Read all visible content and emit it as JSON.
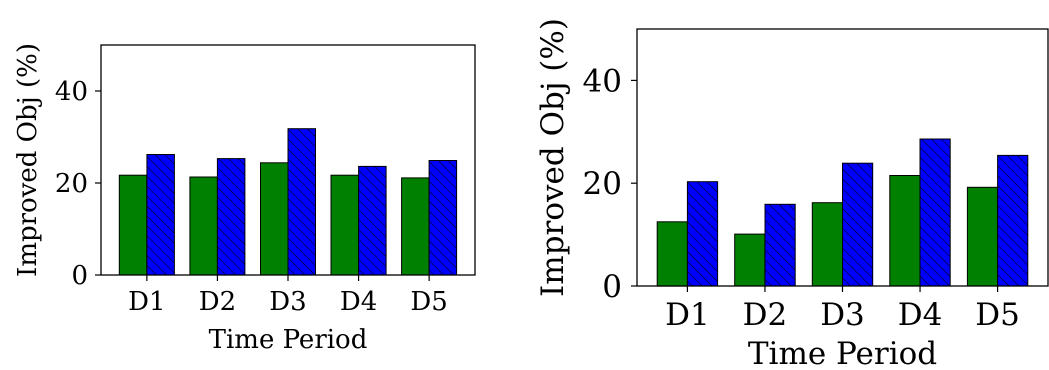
{
  "chart_data": [
    {
      "type": "bar",
      "categories": [
        "D1",
        "D2",
        "D3",
        "D4",
        "D5"
      ],
      "series": [
        {
          "values": [
            21.7,
            21.3,
            24.4,
            21.7,
            21.1
          ]
        },
        {
          "values": [
            26.2,
            25.3,
            31.8,
            23.6,
            24.9
          ]
        }
      ],
      "title": "",
      "xlabel": "Time Period",
      "ylabel": "Improved Obj (%)",
      "ylim": [
        0,
        50
      ],
      "yticks": [
        0,
        20,
        40
      ],
      "grid": false
    },
    {
      "type": "bar",
      "categories": [
        "D1",
        "D2",
        "D3",
        "D4",
        "D5"
      ],
      "series": [
        {
          "values": [
            12.5,
            10.1,
            16.2,
            21.5,
            19.2
          ]
        },
        {
          "values": [
            20.3,
            15.9,
            23.9,
            28.6,
            25.4
          ]
        }
      ],
      "title": "",
      "xlabel": "Time Period",
      "ylabel": "Improved Obj (%)",
      "ylim": [
        0,
        50
      ],
      "yticks": [
        0,
        20,
        40
      ],
      "grid": false
    }
  ],
  "colors": {
    "series0": "#008000",
    "series1": "#0000ff",
    "edge": "#000000"
  }
}
